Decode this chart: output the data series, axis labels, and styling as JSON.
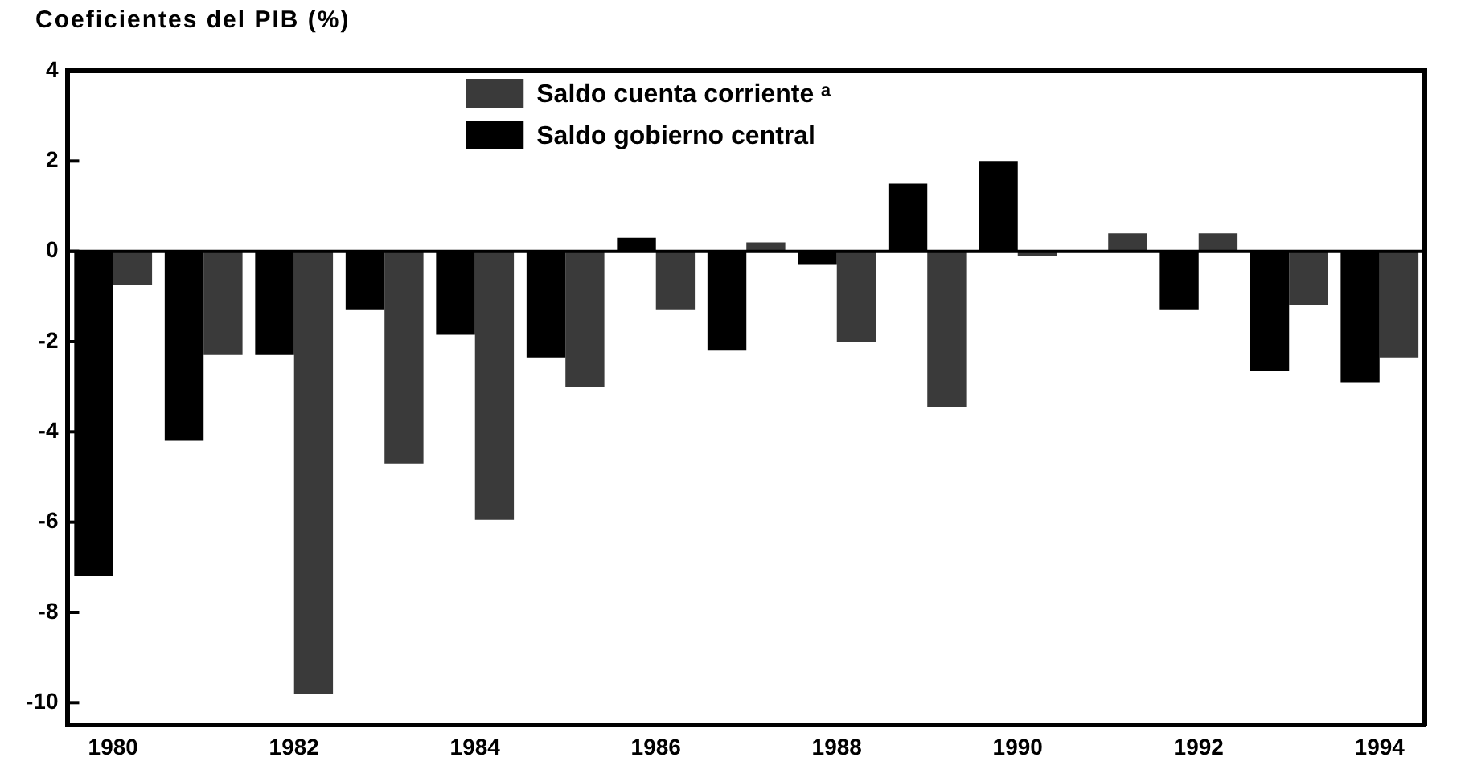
{
  "chart_data": {
    "type": "bar",
    "title": "Coeficientes del PIB (%)",
    "categories": [
      "1980",
      null,
      "1982",
      null,
      "1984",
      null,
      "1986",
      null,
      "1988",
      null,
      "1990",
      null,
      "1992",
      null,
      "1994"
    ],
    "series": [
      {
        "name": "Saldo gobierno central",
        "color": "#000000",
        "values": [
          -7.2,
          -4.2,
          -2.3,
          -1.3,
          -1.85,
          -2.35,
          0.3,
          -2.2,
          -0.3,
          1.5,
          2.0,
          0,
          -1.3,
          -2.65,
          -2.9
        ]
      },
      {
        "name": "Saldo cuenta corriente ᵃ",
        "color": "#3a3a3a",
        "values": [
          -0.75,
          -2.3,
          -9.8,
          -4.7,
          -5.95,
          -3.0,
          -1.3,
          0.2,
          -2.0,
          -3.45,
          -0.1,
          0.4,
          0.4,
          -1.2,
          -2.35
        ]
      }
    ],
    "ylim": [
      -10.5,
      4
    ],
    "yticks": [
      -10,
      -8,
      -6,
      -4,
      -2,
      0,
      2,
      4
    ],
    "grid": false,
    "ref_lines": [
      {
        "axis": "y",
        "value": 0,
        "color": "#000000"
      }
    ],
    "legend": "top"
  }
}
